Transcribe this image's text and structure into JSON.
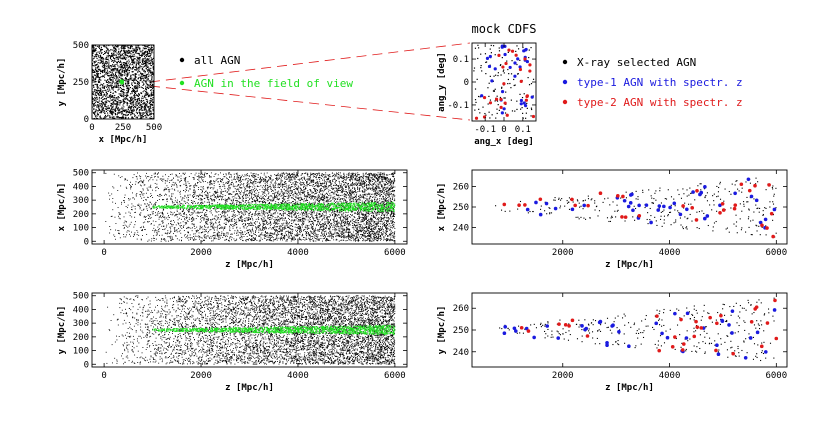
{
  "figure": {
    "colors": {
      "black": "#000000",
      "green": "#22e022",
      "blue": "#1a1adf",
      "red": "#e01a1a"
    },
    "legend_main": {
      "all_agn": "all AGN",
      "agn_fov": "AGN in the field of view"
    },
    "legend_cdfs": {
      "xray": "X-ray selected AGN",
      "type1": "type-1 AGN with spectr. z",
      "type2": "type-2 AGN with spectr. z"
    }
  },
  "chart_data": [
    {
      "id": "xy_box",
      "type": "scatter",
      "xlabel": "x [Mpc/h]",
      "ylabel": "y [Mpc/h]",
      "xlim": [
        0,
        500
      ],
      "ylim": [
        0,
        500
      ],
      "xticks": [
        0,
        250,
        500
      ],
      "yticks": [
        0,
        250,
        500
      ],
      "series": [
        {
          "name": "all AGN",
          "color": "#000000",
          "distribution": "uniform",
          "x_range": [
            0,
            500
          ],
          "y_range": [
            0,
            500
          ],
          "n_points": 2200
        },
        {
          "name": "AGN in the field of view",
          "color": "#22e022",
          "distribution": "cluster",
          "center": [
            240,
            250
          ],
          "radius": 12,
          "n_points": 60
        }
      ]
    },
    {
      "id": "mock_cdfs",
      "type": "scatter",
      "title": "mock CDFS",
      "xlabel": "ang_x [deg]",
      "ylabel": "ang_y [deg]",
      "xlim": [
        -0.17,
        0.17
      ],
      "ylim": [
        -0.17,
        0.17
      ],
      "xticks": [
        -0.1,
        0,
        0.1
      ],
      "yticks": [
        -0.1,
        0,
        0.1
      ],
      "series": [
        {
          "name": "X-ray selected AGN",
          "color": "#000000",
          "n_points": 130
        },
        {
          "name": "type-1 AGN with spectr. z",
          "color": "#1a1adf",
          "n_points": 30
        },
        {
          "name": "type-2 AGN with spectr. z",
          "color": "#e01a1a",
          "n_points": 25
        }
      ]
    },
    {
      "id": "zx_full",
      "type": "scatter",
      "xlabel": "z [Mpc/h]",
      "ylabel": "x [Mpc/h]",
      "xlim": [
        -250,
        6250
      ],
      "ylim": [
        -20,
        520
      ],
      "xticks": [
        0,
        2000,
        4000,
        6000
      ],
      "yticks": [
        0,
        100,
        200,
        300,
        400,
        500
      ],
      "series": [
        {
          "name": "all AGN",
          "color": "#000000",
          "distribution": "uniform_rising",
          "x_range": [
            0,
            6000
          ],
          "y_range": [
            0,
            500
          ],
          "n_points": 6500
        },
        {
          "name": "AGN in the field of view",
          "color": "#22e022",
          "distribution": "cone",
          "center": 250,
          "x_range": [
            1000,
            6000
          ],
          "n_points": 1300
        }
      ]
    },
    {
      "id": "zx_zoom",
      "type": "scatter",
      "xlabel": "z [Mpc/h]",
      "ylabel": "x [Mpc/h]",
      "xlim": [
        300,
        6200
      ],
      "ylim": [
        232,
        268
      ],
      "xticks": [
        2000,
        4000,
        6000
      ],
      "yticks": [
        240,
        250,
        260
      ],
      "series": [
        {
          "name": "X-ray selected AGN",
          "color": "#000000",
          "n_points": 320
        },
        {
          "name": "type-1 AGN with spectr. z",
          "color": "#1a1adf",
          "n_points": 40
        },
        {
          "name": "type-2 AGN with spectr. z",
          "color": "#e01a1a",
          "n_points": 30
        }
      ]
    },
    {
      "id": "zy_full",
      "type": "scatter",
      "xlabel": "z [Mpc/h]",
      "ylabel": "y [Mpc/h]",
      "xlim": [
        -250,
        6250
      ],
      "ylim": [
        -20,
        520
      ],
      "xticks": [
        0,
        2000,
        4000,
        6000
      ],
      "yticks": [
        0,
        100,
        200,
        300,
        400,
        500
      ],
      "series": [
        {
          "name": "all AGN",
          "color": "#000000",
          "distribution": "uniform_rising",
          "x_range": [
            0,
            6000
          ],
          "y_range": [
            0,
            500
          ],
          "n_points": 6500
        },
        {
          "name": "AGN in the field of view",
          "color": "#22e022",
          "distribution": "cone",
          "center": 250,
          "x_range": [
            1000,
            6000
          ],
          "n_points": 1300
        }
      ]
    },
    {
      "id": "zy_zoom",
      "type": "scatter",
      "xlabel": "z [Mpc/h]",
      "ylabel": "y [Mpc/h]",
      "xlim": [
        300,
        6200
      ],
      "ylim": [
        233,
        267
      ],
      "xticks": [
        2000,
        4000,
        6000
      ],
      "yticks": [
        240,
        250,
        260
      ],
      "series": [
        {
          "name": "X-ray selected AGN",
          "color": "#000000",
          "n_points": 320
        },
        {
          "name": "type-1 AGN with spectr. z",
          "color": "#1a1adf",
          "n_points": 40
        },
        {
          "name": "type-2 AGN with spectr. z",
          "color": "#e01a1a",
          "n_points": 30
        }
      ]
    }
  ]
}
